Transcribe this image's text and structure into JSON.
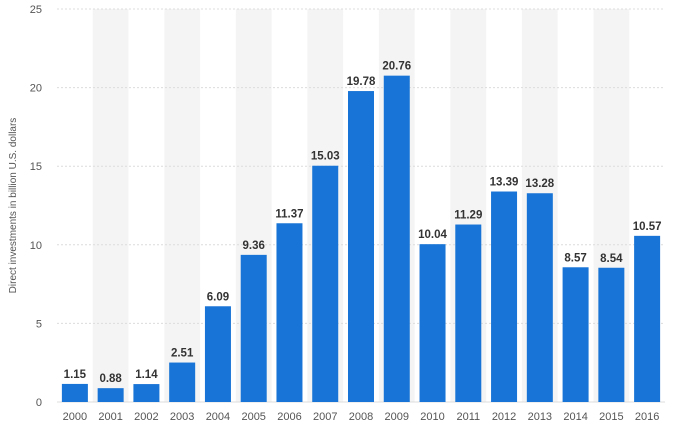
{
  "chart_data": {
    "type": "bar",
    "categories": [
      "2000",
      "2001",
      "2002",
      "2003",
      "2004",
      "2005",
      "2006",
      "2007",
      "2008",
      "2009",
      "2010",
      "2011",
      "2012",
      "2013",
      "2014",
      "2015",
      "2016"
    ],
    "values": [
      1.15,
      0.88,
      1.14,
      2.51,
      6.09,
      9.36,
      11.37,
      15.03,
      19.78,
      20.76,
      10.04,
      11.29,
      13.39,
      13.28,
      8.57,
      8.54,
      10.57
    ],
    "data_labels": [
      "1.15",
      "0.88",
      "1.14",
      "2.51",
      "6.09",
      "9.36",
      "11.37",
      "15.03",
      "19.78",
      "20.76",
      "10.04",
      "11.29",
      "13.39",
      "13.28",
      "8.57",
      "8.54",
      "10.57"
    ],
    "title": "",
    "xlabel": "",
    "ylabel": "Direct investments in billion U.S. dollars",
    "ylim": [
      0,
      25
    ],
    "yticks": [
      "0",
      "5",
      "10",
      "15",
      "20",
      "25"
    ],
    "grid": true,
    "bar_color": "#1874d6",
    "band_color": "#f4f4f4",
    "grid_color": "#dcdcdc"
  }
}
